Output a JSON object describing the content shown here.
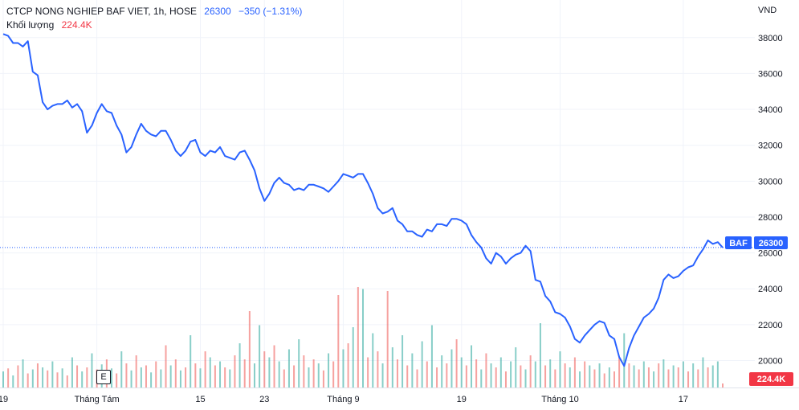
{
  "legend": {
    "symbol": "CTCP NONG NGHIEP BAF VIET, 1h, HOSE",
    "price": "26300",
    "change": "−350 (−1.31%)",
    "volume_label": "Khối lượng",
    "volume_value": "224.4K"
  },
  "currency": "VND",
  "event_badge": "E",
  "price_label": {
    "ticker": "BAF",
    "value": "26300"
  },
  "volume_label": {
    "value": "224.4K"
  },
  "colors": {
    "line": "#2962ff",
    "vol_up": "#26a69a",
    "vol_down": "#ef5350",
    "price_tag": "#2962ff",
    "vol_tag": "#f23645",
    "grid": "#f0f3fa",
    "last_price_line": "#2962ff"
  },
  "chart_data": {
    "type": "line",
    "series": [
      {
        "name": "BAF",
        "values": [
          38200,
          38100,
          37700,
          37700,
          37500,
          37800,
          36100,
          35900,
          34400,
          34000,
          34200,
          34300,
          34300,
          34500,
          34100,
          34300,
          33900,
          32700,
          33100,
          33800,
          34300,
          33900,
          33800,
          33100,
          32600,
          31600,
          31900,
          32600,
          33200,
          32800,
          32600,
          32500,
          32800,
          32800,
          32300,
          31700,
          31400,
          31700,
          32200,
          32300,
          31600,
          31400,
          31700,
          31600,
          31900,
          31400,
          31300,
          31200,
          31600,
          31700,
          31200,
          30600,
          29600,
          28900,
          29300,
          29900,
          30200,
          29900,
          29800,
          29500,
          29600,
          29500,
          29800,
          29800,
          29700,
          29600,
          29400,
          29700,
          30000,
          30400,
          30300,
          30200,
          30400,
          30400,
          29900,
          29300,
          28500,
          28200,
          28300,
          28500,
          27800,
          27600,
          27200,
          27200,
          27000,
          26900,
          27300,
          27200,
          27600,
          27600,
          27500,
          27900,
          27900,
          27800,
          27600,
          27000,
          26600,
          26300,
          25700,
          25400,
          26000,
          25800,
          25400,
          25700,
          25900,
          26000,
          26400,
          26100,
          24500,
          24400,
          23600,
          23300,
          22700,
          22600,
          22400,
          21900,
          21200,
          21000,
          21400,
          21700,
          22000,
          22200,
          22100,
          21400,
          21200,
          20200,
          19700,
          20700,
          21400,
          21900,
          22400,
          22600,
          22900,
          23500,
          24500,
          24800,
          24600,
          24700,
          25000,
          25200,
          25300,
          25800,
          26200,
          26700,
          26500,
          26600,
          26300
        ]
      }
    ],
    "volume": [
      {
        "v": 80,
        "up": true
      },
      {
        "v": 95,
        "up": false
      },
      {
        "v": 60,
        "up": true
      },
      {
        "v": 110,
        "up": false
      },
      {
        "v": 140,
        "up": true
      },
      {
        "v": 70,
        "up": false
      },
      {
        "v": 90,
        "up": true
      },
      {
        "v": 120,
        "up": false
      },
      {
        "v": 100,
        "up": true
      },
      {
        "v": 85,
        "up": false
      },
      {
        "v": 130,
        "up": true
      },
      {
        "v": 75,
        "up": false
      },
      {
        "v": 95,
        "up": true
      },
      {
        "v": 60,
        "up": false
      },
      {
        "v": 150,
        "up": true
      },
      {
        "v": 110,
        "up": false
      },
      {
        "v": 80,
        "up": true
      },
      {
        "v": 100,
        "up": false
      },
      {
        "v": 170,
        "up": true
      },
      {
        "v": 90,
        "up": false
      },
      {
        "v": 115,
        "up": true
      },
      {
        "v": 140,
        "up": false
      },
      {
        "v": 95,
        "up": true
      },
      {
        "v": 70,
        "up": false
      },
      {
        "v": 180,
        "up": true
      },
      {
        "v": 120,
        "up": false
      },
      {
        "v": 85,
        "up": true
      },
      {
        "v": 160,
        "up": false
      },
      {
        "v": 100,
        "up": true
      },
      {
        "v": 110,
        "up": false
      },
      {
        "v": 75,
        "up": true
      },
      {
        "v": 130,
        "up": false
      },
      {
        "v": 90,
        "up": true
      },
      {
        "v": 210,
        "up": false
      },
      {
        "v": 110,
        "up": true
      },
      {
        "v": 140,
        "up": false
      },
      {
        "v": 85,
        "up": true
      },
      {
        "v": 100,
        "up": false
      },
      {
        "v": 260,
        "up": true
      },
      {
        "v": 120,
        "up": false
      },
      {
        "v": 95,
        "up": true
      },
      {
        "v": 180,
        "up": false
      },
      {
        "v": 150,
        "up": true
      },
      {
        "v": 110,
        "up": false
      },
      {
        "v": 130,
        "up": true
      },
      {
        "v": 100,
        "up": false
      },
      {
        "v": 90,
        "up": true
      },
      {
        "v": 160,
        "up": false
      },
      {
        "v": 220,
        "up": true
      },
      {
        "v": 140,
        "up": false
      },
      {
        "v": 380,
        "up": false
      },
      {
        "v": 120,
        "up": true
      },
      {
        "v": 310,
        "up": true
      },
      {
        "v": 180,
        "up": false
      },
      {
        "v": 150,
        "up": true
      },
      {
        "v": 210,
        "up": false
      },
      {
        "v": 130,
        "up": true
      },
      {
        "v": 90,
        "up": false
      },
      {
        "v": 190,
        "up": true
      },
      {
        "v": 110,
        "up": false
      },
      {
        "v": 240,
        "up": true
      },
      {
        "v": 160,
        "up": false
      },
      {
        "v": 100,
        "up": true
      },
      {
        "v": 140,
        "up": false
      },
      {
        "v": 120,
        "up": true
      },
      {
        "v": 85,
        "up": false
      },
      {
        "v": 170,
        "up": true
      },
      {
        "v": 130,
        "up": false
      },
      {
        "v": 460,
        "up": false
      },
      {
        "v": 190,
        "up": true
      },
      {
        "v": 220,
        "up": false
      },
      {
        "v": 300,
        "up": true
      },
      {
        "v": 500,
        "up": false
      },
      {
        "v": 490,
        "up": true
      },
      {
        "v": 150,
        "up": false
      },
      {
        "v": 270,
        "up": true
      },
      {
        "v": 180,
        "up": false
      },
      {
        "v": 120,
        "up": true
      },
      {
        "v": 480,
        "up": false
      },
      {
        "v": 200,
        "up": true
      },
      {
        "v": 140,
        "up": false
      },
      {
        "v": 260,
        "up": true
      },
      {
        "v": 110,
        "up": false
      },
      {
        "v": 170,
        "up": true
      },
      {
        "v": 90,
        "up": false
      },
      {
        "v": 230,
        "up": true
      },
      {
        "v": 130,
        "up": false
      },
      {
        "v": 310,
        "up": true
      },
      {
        "v": 100,
        "up": false
      },
      {
        "v": 160,
        "up": true
      },
      {
        "v": 120,
        "up": false
      },
      {
        "v": 190,
        "up": true
      },
      {
        "v": 240,
        "up": false
      },
      {
        "v": 150,
        "up": true
      },
      {
        "v": 110,
        "up": false
      },
      {
        "v": 210,
        "up": true
      },
      {
        "v": 140,
        "up": false
      },
      {
        "v": 90,
        "up": true
      },
      {
        "v": 170,
        "up": false
      },
      {
        "v": 120,
        "up": true
      },
      {
        "v": 100,
        "up": false
      },
      {
        "v": 150,
        "up": true
      },
      {
        "v": 80,
        "up": false
      },
      {
        "v": 130,
        "up": true
      },
      {
        "v": 200,
        "up": true
      },
      {
        "v": 110,
        "up": false
      },
      {
        "v": 90,
        "up": true
      },
      {
        "v": 160,
        "up": false
      },
      {
        "v": 130,
        "up": true
      },
      {
        "v": 320,
        "up": true
      },
      {
        "v": 110,
        "up": false
      },
      {
        "v": 140,
        "up": true
      },
      {
        "v": 90,
        "up": false
      },
      {
        "v": 180,
        "up": true
      },
      {
        "v": 120,
        "up": false
      },
      {
        "v": 100,
        "up": true
      },
      {
        "v": 150,
        "up": false
      },
      {
        "v": 80,
        "up": true
      },
      {
        "v": 130,
        "up": false
      },
      {
        "v": 110,
        "up": true
      },
      {
        "v": 90,
        "up": false
      },
      {
        "v": 120,
        "up": true
      },
      {
        "v": 70,
        "up": false
      },
      {
        "v": 100,
        "up": true
      },
      {
        "v": 80,
        "up": false
      },
      {
        "v": 150,
        "up": false
      },
      {
        "v": 270,
        "up": true
      },
      {
        "v": 120,
        "up": false
      },
      {
        "v": 110,
        "up": true
      },
      {
        "v": 90,
        "up": false
      },
      {
        "v": 130,
        "up": true
      },
      {
        "v": 100,
        "up": false
      },
      {
        "v": 80,
        "up": true
      },
      {
        "v": 120,
        "up": false
      },
      {
        "v": 140,
        "up": true
      },
      {
        "v": 90,
        "up": false
      },
      {
        "v": 110,
        "up": true
      },
      {
        "v": 100,
        "up": false
      },
      {
        "v": 130,
        "up": true
      },
      {
        "v": 80,
        "up": false
      },
      {
        "v": 120,
        "up": true
      },
      {
        "v": 90,
        "up": false
      },
      {
        "v": 150,
        "up": true
      },
      {
        "v": 100,
        "up": false
      },
      {
        "v": 110,
        "up": true
      },
      {
        "v": 130,
        "up": true
      },
      {
        "v": 20,
        "up": false
      }
    ],
    "ylim": [
      18500,
      39200
    ],
    "yticks": [
      20000,
      22000,
      24000,
      26000,
      28000,
      30000,
      32000,
      34000,
      36000,
      38000
    ],
    "xtick_labels": [
      {
        "label": "19",
        "index": 0
      },
      {
        "label": "Tháng Tám",
        "index": 19
      },
      {
        "label": "15",
        "index": 40
      },
      {
        "label": "23",
        "index": 53
      },
      {
        "label": "Tháng 9",
        "index": 69
      },
      {
        "label": "19",
        "index": 93
      },
      {
        "label": "Tháng 10",
        "index": 113
      },
      {
        "label": "17",
        "index": 138
      }
    ],
    "last_value": 26300,
    "grid": true
  }
}
